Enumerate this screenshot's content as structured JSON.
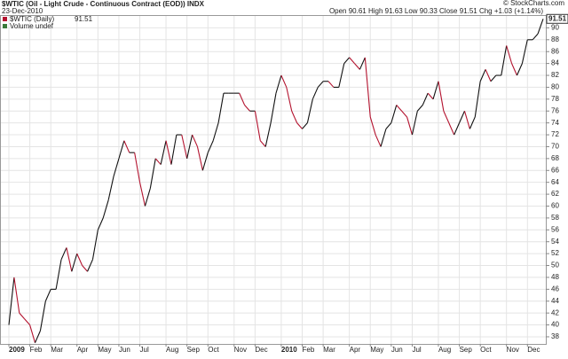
{
  "chart_data": {
    "type": "line",
    "title": "$WTIC (Oil - Light Crude - Continuous Contract (EOD)) INDX",
    "date": "23-Dec-2010",
    "ohlc": "Open 90.61 High 91.63 Low 90.33 Close 91.51 Chg +1.03 (+1.14%)",
    "source": "© StockCharts.com",
    "volume_note": "Volume undef",
    "categories": [
      "2009",
      null,
      null,
      null,
      "Feb",
      null,
      null,
      null,
      "Mar",
      null,
      null,
      null,
      null,
      "Apr",
      null,
      null,
      null,
      "May",
      null,
      null,
      null,
      "Jun",
      null,
      null,
      null,
      "Jul",
      null,
      null,
      null,
      null,
      "Aug",
      null,
      null,
      null,
      "Sep",
      null,
      null,
      null,
      "Oct",
      null,
      null,
      null,
      null,
      "Nov",
      null,
      null,
      null,
      "Dec",
      null,
      null,
      null,
      null,
      "2010",
      null,
      null,
      null,
      "Feb",
      null,
      null,
      null,
      "Mar",
      null,
      null,
      null,
      null,
      "Apr",
      null,
      null,
      null,
      "May",
      null,
      null,
      null,
      "Jun",
      null,
      null,
      null,
      "Jul",
      null,
      null,
      null,
      null,
      "Aug",
      null,
      null,
      null,
      "Sep",
      null,
      null,
      null,
      "Oct",
      null,
      null,
      null,
      null,
      "Nov",
      null,
      null,
      null,
      "Dec",
      null,
      null,
      null
    ],
    "series": [
      {
        "name": "$WTIC (Daily)",
        "up_color": "#111111",
        "down_color": "#b3122e",
        "values": [
          40,
          48,
          42,
          41,
          40,
          37,
          39,
          44,
          46,
          46,
          51,
          53,
          49,
          52,
          50,
          49,
          51,
          56,
          58,
          61,
          65,
          68,
          71,
          69,
          69,
          64,
          60,
          63,
          68,
          67,
          71,
          67,
          72,
          72,
          68,
          72,
          70,
          66,
          69,
          71,
          74,
          79,
          79,
          79,
          79,
          77,
          76,
          76,
          71,
          70,
          74,
          79,
          82,
          80,
          76,
          74,
          73,
          74,
          78,
          80,
          81,
          81,
          80,
          80,
          84,
          85,
          84,
          83,
          85,
          75,
          72,
          70,
          73,
          74,
          77,
          76,
          75,
          72,
          76,
          77,
          79,
          78,
          81,
          76,
          74,
          72,
          74,
          76,
          73,
          75,
          81,
          83,
          81,
          82,
          82,
          87,
          84,
          82,
          84,
          88,
          88,
          89,
          91.51
        ]
      }
    ],
    "ylim": [
      36.8,
      92
    ],
    "yticks": [
      38,
      40,
      42,
      44,
      46,
      48,
      50,
      52,
      54,
      56,
      58,
      60,
      62,
      64,
      66,
      68,
      70,
      72,
      74,
      76,
      78,
      80,
      82,
      84,
      86,
      88,
      90
    ],
    "grid": true
  }
}
